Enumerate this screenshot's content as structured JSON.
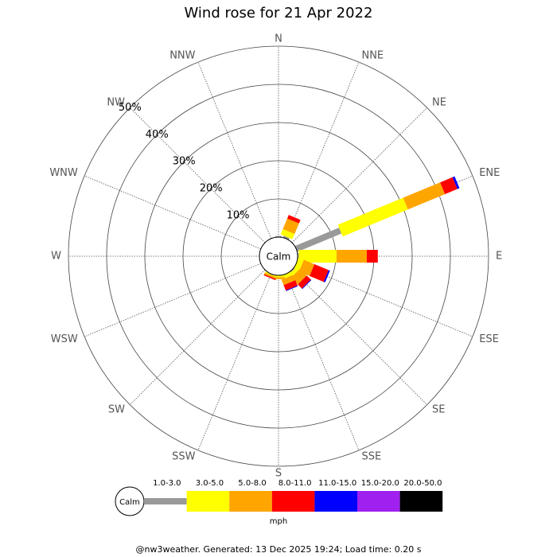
{
  "chart_data": {
    "type": "wind_rose",
    "title": "Wind rose for 21 Apr 2022",
    "categories": [
      "N",
      "NNE",
      "NE",
      "ENE",
      "E",
      "ESE",
      "SE",
      "SSE",
      "S",
      "SSW",
      "SW",
      "WSW",
      "W",
      "WNW",
      "NW",
      "NNW"
    ],
    "series": [
      {
        "name": "1.0-3.0",
        "color": "#999999",
        "values": [
          0.3,
          0.5,
          0,
          12.5,
          0.3,
          0,
          0.3,
          0,
          0,
          0,
          0,
          0,
          0,
          0,
          0,
          0
        ]
      },
      {
        "name": "3.0-5.0",
        "color": "#ffff00",
        "values": [
          0,
          1.5,
          0,
          18.5,
          9.9,
          1.5,
          1,
          1,
          0.5,
          0.3,
          0,
          0,
          0,
          0,
          0,
          0
        ]
      },
      {
        "name": "5.0-8.0",
        "color": "#ffa500",
        "values": [
          0,
          3,
          0,
          10.5,
          7.9,
          3,
          2.5,
          1.5,
          0.5,
          0.5,
          0,
          0,
          0,
          0,
          0,
          0
        ]
      },
      {
        "name": "8.0-11.0",
        "color": "#ff0000",
        "values": [
          0,
          1,
          0,
          3.5,
          2.9,
          4,
          1.5,
          1.5,
          0,
          0.3,
          0,
          0,
          0,
          0,
          0,
          0
        ]
      },
      {
        "name": "11.0-15.0",
        "color": "#0000ff",
        "values": [
          0,
          0,
          0,
          0.6,
          0,
          0.4,
          0.2,
          0.2,
          0,
          0,
          0,
          0,
          0,
          0,
          0,
          0
        ]
      },
      {
        "name": "15.0-20.0",
        "color": "#a020f0",
        "values": [
          0,
          0,
          0,
          0,
          0,
          0,
          0,
          0,
          0,
          0,
          0,
          0,
          0,
          0,
          0,
          0
        ]
      },
      {
        "name": "20.0-50.0",
        "color": "#000000",
        "values": [
          0,
          0,
          0,
          0,
          0,
          0,
          0,
          0,
          0,
          0,
          0,
          0,
          0,
          0,
          0,
          0
        ]
      }
    ],
    "rlim": [
      0,
      50
    ],
    "rticks": [
      {
        "value": 10,
        "label": "10%"
      },
      {
        "value": 20,
        "label": "20%"
      },
      {
        "value": 30,
        "label": "30%"
      },
      {
        "value": 40,
        "label": "40%"
      },
      {
        "value": 50,
        "label": "50%"
      }
    ],
    "calm_label": "Calm",
    "legend_unit": "mph",
    "footer": "@nw3weather. Generated: 13 Dec 2025 19:24; Load time: 0.20 s"
  }
}
